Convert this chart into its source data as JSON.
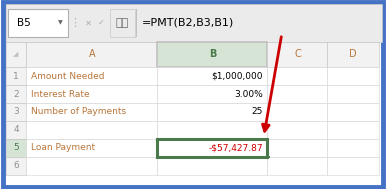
{
  "outer_border_color": "#4472c4",
  "bg_color": "#ffffff",
  "header_bar_bg": "#ebebeb",
  "header_bar_border": "#c8c8c8",
  "name_box_text": "B5",
  "formula_bar_text": "=PMT(B2,B3,B1)",
  "col_header_bg": "#f2f2f2",
  "col_header_border": "#c0c0c0",
  "col_header_A_text_color": "#b8763a",
  "col_header_B_text_color": "#4a7a4a",
  "col_header_B_bg": "#d6e4d6",
  "row_num_color": "#909090",
  "grid_color": "#d3d3d3",
  "cell_label_color": "#b8763a",
  "cell_value_color": "#000000",
  "cell_pmt_color": "#cc0000",
  "selected_cell_border": "#4a7a4a",
  "rows": [
    "1",
    "2",
    "3",
    "4",
    "5",
    "6"
  ],
  "cols": [
    "",
    "A",
    "B",
    "C",
    "D"
  ],
  "a_labels": [
    "Amount Needed",
    "Interest Rate",
    "Number of Payments",
    "",
    "Loan Payment",
    ""
  ],
  "b_values": [
    "$1,000,000",
    "3.00%",
    "25",
    "",
    "-$57,427.87",
    ""
  ]
}
